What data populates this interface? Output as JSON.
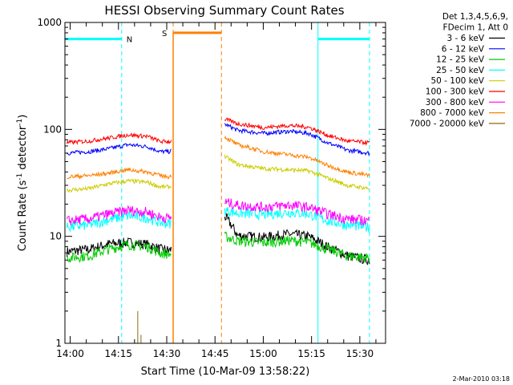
{
  "chart_data": {
    "type": "line",
    "title": "HESSI Observing Summary Count Rates",
    "xlabel": "Start Time (10-Mar-09 13:58:22)",
    "ylabel_main": "Count Rate (s",
    "ylabel_sup1": "-1",
    "ylabel_mid": " detector",
    "ylabel_sup2": "-1",
    "ylabel_end": ")",
    "ylog": true,
    "ylim": [
      1,
      1000
    ],
    "xlim": [
      "13:58:22",
      "15:38:00"
    ],
    "x_ticks": [
      {
        "t": "14:00",
        "label": "14:00"
      },
      {
        "t": "14:15",
        "label": "14:15"
      },
      {
        "t": "14:30",
        "label": "14:30"
      },
      {
        "t": "14:45",
        "label": "14:45"
      },
      {
        "t": "15:00",
        "label": "15:00"
      },
      {
        "t": "15:15",
        "label": "15:15"
      },
      {
        "t": "15:30",
        "label": "15:30"
      }
    ],
    "y_ticks": [
      {
        "v": 1,
        "label": "1"
      },
      {
        "v": 10,
        "label": "10"
      },
      {
        "v": 100,
        "label": "100"
      },
      {
        "v": 1000,
        "label": "1000"
      }
    ],
    "legend_header": [
      "Det 1,3,4,5,6,9,",
      "FDecim 1, Att 0"
    ],
    "legend_position": "top-right, outside plot",
    "timestamp": "2-Mar-2010 03:18",
    "gap": {
      "start": "14:32:00",
      "end": "14:48:00"
    },
    "series": [
      {
        "name": "3 - 6 keV",
        "color": "#000000",
        "points": [
          [
            "13:59",
            7.2
          ],
          [
            "14:06",
            7.6
          ],
          [
            "14:12",
            8.5
          ],
          [
            "14:18",
            8.8
          ],
          [
            "14:24",
            8.4
          ],
          [
            "14:28",
            7.6
          ],
          [
            "14:31",
            7.4
          ],
          [
            "14:48",
            15.5
          ],
          [
            "14:52",
            10.2
          ],
          [
            "15:00",
            9.8
          ],
          [
            "15:08",
            10.5
          ],
          [
            "15:14",
            10.0
          ],
          [
            "15:20",
            8.0
          ],
          [
            "15:26",
            6.6
          ],
          [
            "15:33",
            6.0
          ]
        ]
      },
      {
        "name": "6 - 12 keV",
        "color": "#0000ff",
        "points": [
          [
            "13:59",
            60
          ],
          [
            "14:06",
            62
          ],
          [
            "14:12",
            66
          ],
          [
            "14:18",
            72
          ],
          [
            "14:24",
            69
          ],
          [
            "14:28",
            62
          ],
          [
            "14:31",
            62
          ],
          [
            "14:48",
            112
          ],
          [
            "14:52",
            98
          ],
          [
            "15:00",
            92
          ],
          [
            "15:08",
            96
          ],
          [
            "15:14",
            92
          ],
          [
            "15:20",
            75
          ],
          [
            "15:26",
            64
          ],
          [
            "15:33",
            60
          ]
        ]
      },
      {
        "name": "12 - 25 keV",
        "color": "#00cc00",
        "points": [
          [
            "13:59",
            6.3
          ],
          [
            "14:06",
            6.6
          ],
          [
            "14:12",
            7.6
          ],
          [
            "14:18",
            8.4
          ],
          [
            "14:24",
            8.0
          ],
          [
            "14:28",
            7.0
          ],
          [
            "14:31",
            6.8
          ],
          [
            "14:48",
            10.0
          ],
          [
            "14:52",
            9.1
          ],
          [
            "15:00",
            8.7
          ],
          [
            "15:08",
            9.2
          ],
          [
            "15:14",
            8.8
          ],
          [
            "15:20",
            7.6
          ],
          [
            "15:26",
            6.6
          ],
          [
            "15:33",
            6.3
          ]
        ]
      },
      {
        "name": "25 - 50 keV",
        "color": "#00ffff",
        "points": [
          [
            "13:59",
            12.2
          ],
          [
            "14:06",
            12.8
          ],
          [
            "14:12",
            14.3
          ],
          [
            "14:18",
            15.6
          ],
          [
            "14:24",
            14.9
          ],
          [
            "14:28",
            13.4
          ],
          [
            "14:31",
            13.2
          ],
          [
            "14:48",
            17.5
          ],
          [
            "14:52",
            16.5
          ],
          [
            "15:00",
            16.0
          ],
          [
            "15:08",
            16.8
          ],
          [
            "15:14",
            16.2
          ],
          [
            "15:20",
            14.0
          ],
          [
            "15:26",
            12.8
          ],
          [
            "15:33",
            12.2
          ]
        ]
      },
      {
        "name": "50 - 100 keV",
        "color": "#cccc00",
        "points": [
          [
            "13:59",
            27
          ],
          [
            "14:06",
            28
          ],
          [
            "14:12",
            31
          ],
          [
            "14:18",
            33
          ],
          [
            "14:24",
            32
          ],
          [
            "14:28",
            29
          ],
          [
            "14:31",
            29
          ],
          [
            "14:48",
            56
          ],
          [
            "14:52",
            47
          ],
          [
            "15:00",
            43
          ],
          [
            "15:08",
            42
          ],
          [
            "15:14",
            41
          ],
          [
            "15:20",
            35
          ],
          [
            "15:26",
            30
          ],
          [
            "15:33",
            28
          ]
        ]
      },
      {
        "name": "100 - 300 keV",
        "color": "#ff0000",
        "points": [
          [
            "13:59",
            75
          ],
          [
            "14:06",
            78
          ],
          [
            "14:12",
            83
          ],
          [
            "14:18",
            89
          ],
          [
            "14:24",
            86
          ],
          [
            "14:28",
            77
          ],
          [
            "14:31",
            77
          ],
          [
            "14:48",
            125
          ],
          [
            "14:52",
            113
          ],
          [
            "15:00",
            104
          ],
          [
            "15:08",
            109
          ],
          [
            "15:14",
            105
          ],
          [
            "15:20",
            88
          ],
          [
            "15:26",
            78
          ],
          [
            "15:33",
            75
          ]
        ]
      },
      {
        "name": "300 - 800 keV",
        "color": "#ff00ff",
        "points": [
          [
            "13:59",
            14.0
          ],
          [
            "14:06",
            14.6
          ],
          [
            "14:12",
            16.2
          ],
          [
            "14:18",
            17.6
          ],
          [
            "14:24",
            16.9
          ],
          [
            "14:28",
            15.1
          ],
          [
            "14:31",
            14.9
          ],
          [
            "14:48",
            21.0
          ],
          [
            "14:52",
            19.6
          ],
          [
            "15:00",
            18.8
          ],
          [
            "15:08",
            19.6
          ],
          [
            "15:14",
            18.8
          ],
          [
            "15:20",
            16.2
          ],
          [
            "15:26",
            14.6
          ],
          [
            "15:33",
            14.0
          ]
        ]
      },
      {
        "name": "800 - 7000 keV",
        "color": "#ff8000",
        "points": [
          [
            "13:59",
            36
          ],
          [
            "14:06",
            37
          ],
          [
            "14:12",
            39
          ],
          [
            "14:18",
            42
          ],
          [
            "14:24",
            40
          ],
          [
            "14:28",
            37
          ],
          [
            "14:31",
            36
          ],
          [
            "14:48",
            85
          ],
          [
            "14:52",
            72
          ],
          [
            "15:00",
            62
          ],
          [
            "15:08",
            58
          ],
          [
            "15:14",
            55
          ],
          [
            "15:20",
            46
          ],
          [
            "15:26",
            40
          ],
          [
            "15:33",
            37
          ]
        ]
      },
      {
        "name": "7000 - 20000 keV",
        "color": "#8b6914",
        "points": [
          [
            "14:21",
            2.0
          ],
          [
            "14:22",
            1.2
          ]
        ]
      }
    ],
    "flags": [
      {
        "label": "N",
        "color": "#00ffff",
        "level": 700,
        "from": "13:58:22",
        "to": "14:16:00",
        "dashed_at": [
          "13:58:22",
          "14:16:00"
        ]
      },
      {
        "label": "S",
        "color": "#ff8000",
        "level": 800,
        "from": "14:32:00",
        "to": "14:47:00",
        "dashed_at": [
          "14:32:00",
          "14:47:00"
        ]
      },
      {
        "label": "",
        "color": "#00ffff",
        "level": 700,
        "from": "15:17:00",
        "to": "15:33:00",
        "dashed_at": [
          "15:17:00",
          "15:33:00"
        ]
      }
    ]
  }
}
